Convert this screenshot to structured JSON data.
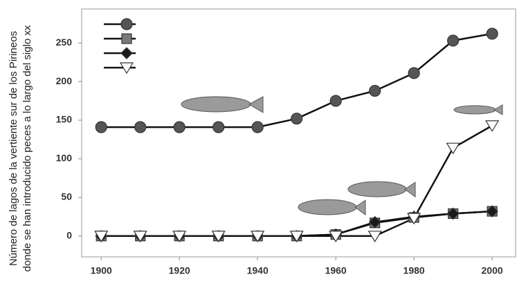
{
  "chart_data": {
    "type": "line",
    "ylabel": [
      "Número de lagos de la vertiente sur de los Pirineos",
      "donde se han introducido peces a lo largo del siglo xx"
    ],
    "x": [
      1900,
      1910,
      1920,
      1930,
      1940,
      1950,
      1960,
      1970,
      1980,
      1990,
      2000
    ],
    "series": [
      {
        "marker": "circle",
        "color": "#555555",
        "values": [
          141,
          141,
          141,
          141,
          141,
          152,
          175,
          188,
          211,
          253,
          262
        ]
      },
      {
        "marker": "square",
        "color": "#7a7a7a",
        "values": [
          0,
          0,
          0,
          0,
          0,
          0,
          2,
          17,
          24,
          29,
          32
        ]
      },
      {
        "marker": "diamond",
        "color": "#1a1a1a",
        "values": [
          0,
          0,
          0,
          0,
          0,
          0,
          2,
          18,
          25,
          29,
          32
        ]
      },
      {
        "marker": "triangle-down",
        "color": "#ffffff",
        "values": [
          0,
          0,
          0,
          0,
          0,
          0,
          0,
          0,
          23,
          114,
          143
        ]
      }
    ],
    "xlim": [
      1895,
      2006
    ],
    "xticks": [
      1900,
      1920,
      1940,
      1960,
      1980,
      2000
    ],
    "ylim": [
      -27,
      294
    ],
    "yticks": [
      0,
      50,
      100,
      150,
      200,
      250
    ]
  }
}
